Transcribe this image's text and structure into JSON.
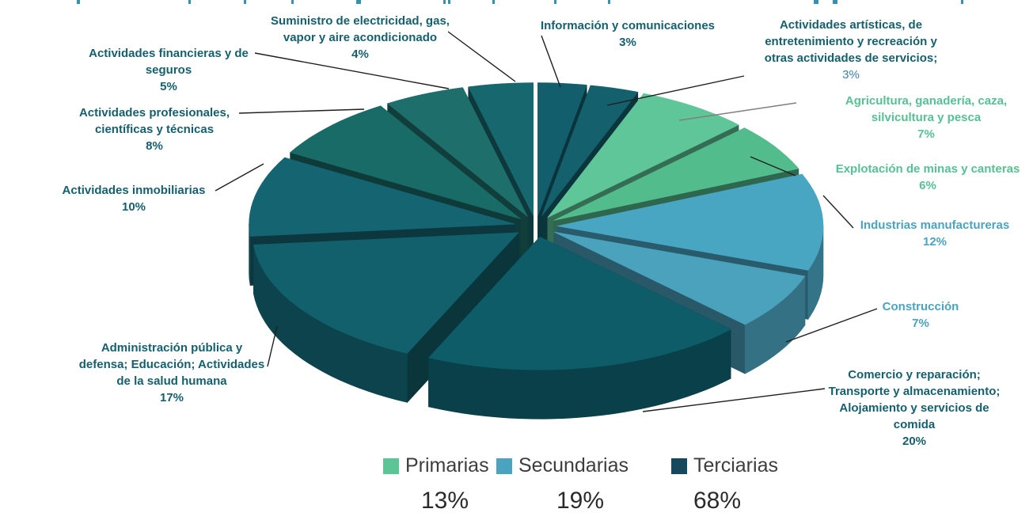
{
  "chart_data": {
    "type": "pie",
    "style": "3d-exploded",
    "legend_position": "bottom",
    "slices": [
      {
        "id": "informacion",
        "label": "Información y comunicaciones",
        "lines": [
          "Información y comunicaciones"
        ],
        "value": 3,
        "pct": "3%",
        "group": "Terciarias",
        "color": "#135e6d",
        "label_color": "#16606e"
      },
      {
        "id": "artisticas",
        "label": "Actividades artísticas, de entretenimiento y recreación y otras actividades de servicios;",
        "lines": [
          "Actividades artísticas, de",
          "entretenimiento y recreación y",
          "otras actividades de servicios;"
        ],
        "value": 3,
        "pct": "3%",
        "group": "Terciarias",
        "color": "#14616d",
        "label_color": "#16606e",
        "pct_color": "#3e81a0",
        "pct_weight": "normal"
      },
      {
        "id": "agricultura",
        "label": "Agricultura, ganadería, caza, silvicultura y pesca",
        "lines": [
          "Agricultura, ganadería, caza,",
          "silvicultura y pesca"
        ],
        "value": 7,
        "pct": "7%",
        "group": "Primarias",
        "color": "#5ec698",
        "label_color": "#57c193"
      },
      {
        "id": "minas",
        "label": "Explotación de minas y canteras",
        "lines": [
          "Explotación de minas y canteras"
        ],
        "value": 6,
        "pct": "6%",
        "group": "Primarias",
        "color": "#53bc8d",
        "label_color": "#57c193"
      },
      {
        "id": "manufactureras",
        "label": "Industrias manufactureras",
        "lines": [
          "Industrias manufactureras"
        ],
        "value": 12,
        "pct": "12%",
        "group": "Secundarias",
        "color": "#49a6c3",
        "label_color": "#4aa3bf"
      },
      {
        "id": "construccion",
        "label": "Construcción",
        "lines": [
          "Construcción"
        ],
        "value": 7,
        "pct": "7%",
        "group": "Secundarias",
        "color": "#4aa2bd",
        "label_color": "#4aa3bf"
      },
      {
        "id": "comercio",
        "label": "Comercio y reparación; Transporte y almacenamiento; Alojamiento y servicios de comida",
        "lines": [
          "Comercio y reparación;",
          "Transporte y almacenamiento;",
          "Alojamiento y servicios de",
          "comida"
        ],
        "value": 20,
        "pct": "20%",
        "group": "Terciarias",
        "color": "#0d5c68",
        "label_color": "#16606e"
      },
      {
        "id": "administracion",
        "label": "Administración pública y defensa; Educación; Actividades de la salud humana",
        "lines": [
          "Administración pública y",
          "defensa; Educación; Actividades",
          "de la salud humana"
        ],
        "value": 17,
        "pct": "17%",
        "group": "Terciarias",
        "color": "#11606c",
        "label_color": "#16606e"
      },
      {
        "id": "inmobiliarias",
        "label": "Actividades inmobiliarias",
        "lines": [
          "Actividades inmobiliarias"
        ],
        "value": 10,
        "pct": "10%",
        "group": "Terciarias",
        "color": "#156471",
        "label_color": "#16606e"
      },
      {
        "id": "profesionales",
        "label": "Actividades profesionales, científicas y técnicas",
        "lines": [
          "Actividades profesionales,",
          "científicas y técnicas"
        ],
        "value": 8,
        "pct": "8%",
        "group": "Terciarias",
        "color": "#196b68",
        "label_color": "#16606e"
      },
      {
        "id": "financieras",
        "label": "Actividades financieras y de seguros",
        "lines": [
          "Actividades financieras y de",
          "seguros"
        ],
        "value": 5,
        "pct": "5%",
        "group": "Terciarias",
        "color": "#1e6f6c",
        "label_color": "#16606e"
      },
      {
        "id": "suministro",
        "label": "Suministro de electricidad, gas, vapor y aire acondicionado",
        "lines": [
          "Suministro de electricidad, gas,",
          "vapor y aire acondicionado"
        ],
        "value": 4,
        "pct": "4%",
        "group": "Terciarias",
        "color": "#17676f",
        "label_color": "#16606e"
      }
    ],
    "groups": [
      {
        "name": "Primarias",
        "pct": "13%",
        "color": "#5cc596"
      },
      {
        "name": "Secundarias",
        "pct": "19%",
        "color": "#4aa3bf"
      },
      {
        "name": "Terciarias",
        "pct": "68%",
        "color": "#17485e"
      }
    ]
  }
}
